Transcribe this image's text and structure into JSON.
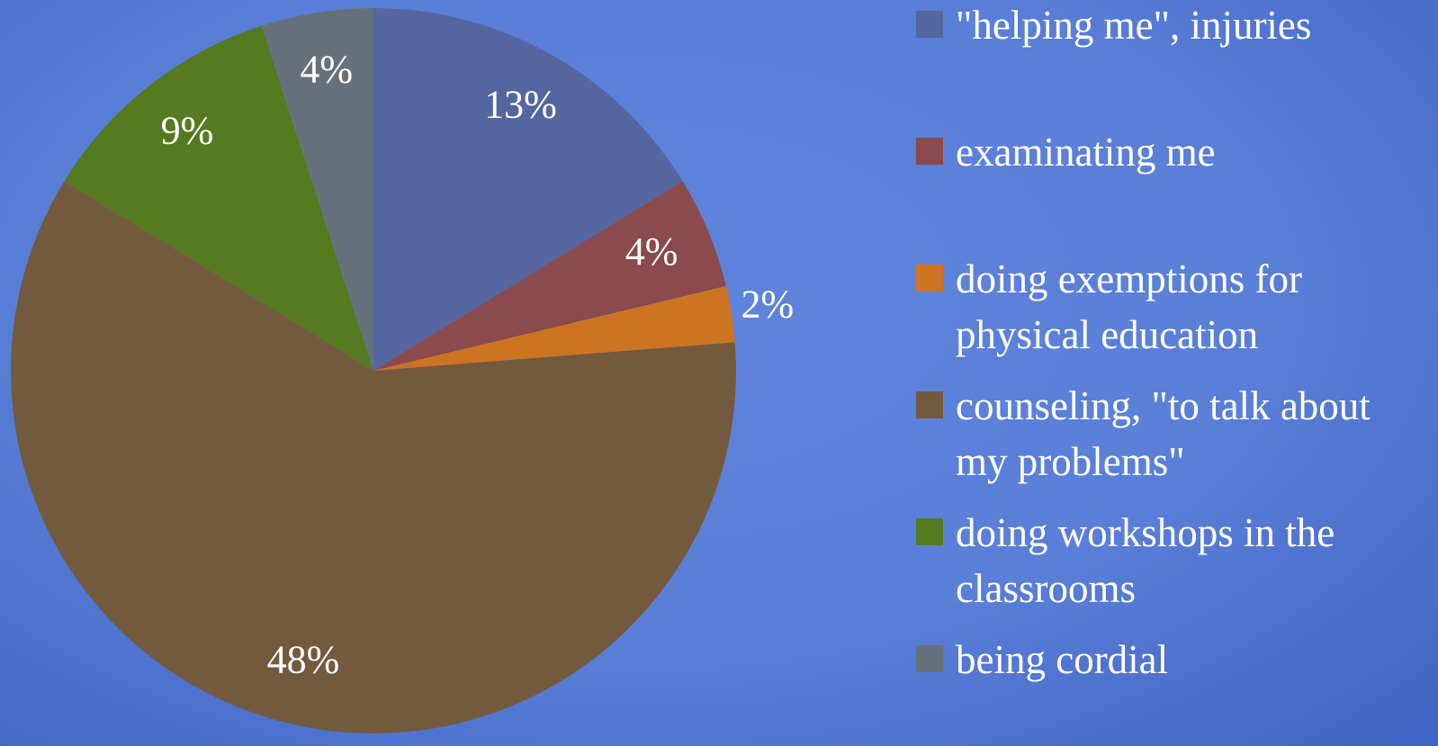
{
  "chart_data": {
    "type": "pie",
    "categories": [
      "\"helping me\", injuries",
      "examinating me",
      "doing exemptions for physical education",
      "counseling, \"to talk about my problems\"",
      "doing workshops in the classrooms",
      "being cordial"
    ],
    "values": [
      13,
      4,
      2,
      48,
      9,
      4
    ],
    "value_labels": [
      "13%",
      "4%",
      "2%",
      "48%",
      "9%",
      "4%"
    ],
    "colors": [
      "#5666a1",
      "#8b4a4d",
      "#cd7421",
      "#735a3f",
      "#567a1f",
      "#66727b"
    ],
    "legend": "right"
  }
}
